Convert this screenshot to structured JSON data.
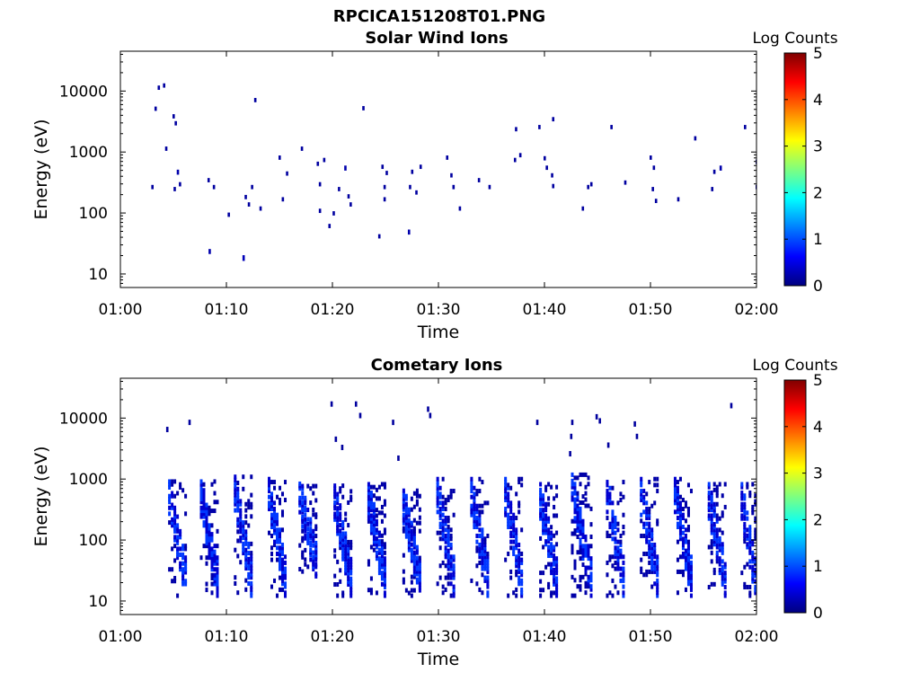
{
  "figure": {
    "filename": "RPCICA151208T01.PNG"
  },
  "colors": {
    "background": "#ffffff",
    "axes": "#000000",
    "point_low": "#00008f",
    "point_mid": "#0000ff",
    "colormap": [
      "#00007f",
      "#0000ff",
      "#007fff",
      "#00ffff",
      "#7fff7f",
      "#ffff00",
      "#ff7f00",
      "#ff0000",
      "#7f0000"
    ]
  },
  "chart_data": [
    {
      "type": "heatmap",
      "title": "Solar Wind Ions",
      "xlabel": "Time",
      "ylabel": "Energy (eV)",
      "yscale": "log",
      "ylim": [
        6,
        45000
      ],
      "xlim": [
        "01:00",
        "02:00"
      ],
      "xticks": [
        "01:00",
        "01:10",
        "01:20",
        "01:30",
        "01:40",
        "01:50",
        "02:00"
      ],
      "yticks": [
        10,
        100,
        1000,
        10000
      ],
      "ytick_labels": [
        "10",
        "100",
        "1000",
        "10000"
      ],
      "colorbar": {
        "label": "Log Counts",
        "range": [
          0,
          5
        ],
        "ticks": [
          "0",
          "1",
          "2",
          "3",
          "4",
          "5"
        ]
      },
      "points": [
        {
          "t": 3.0,
          "e": 270,
          "c": 0.1
        },
        {
          "t": 3.3,
          "e": 5200,
          "c": 0.1
        },
        {
          "t": 3.6,
          "e": 11500,
          "c": 0.1
        },
        {
          "t": 4.1,
          "e": 12500,
          "c": 0.1
        },
        {
          "t": 4.3,
          "e": 1150,
          "c": 0.1
        },
        {
          "t": 5.0,
          "e": 3900,
          "c": 0.1
        },
        {
          "t": 5.2,
          "e": 3000,
          "c": 0.1
        },
        {
          "t": 5.4,
          "e": 480,
          "c": 0.2
        },
        {
          "t": 5.6,
          "e": 300,
          "c": 0.1
        },
        {
          "t": 5.1,
          "e": 250,
          "c": 0.1
        },
        {
          "t": 8.3,
          "e": 350,
          "c": 0.1
        },
        {
          "t": 8.4,
          "e": 24,
          "c": 0.2
        },
        {
          "t": 8.8,
          "e": 270,
          "c": 0.1
        },
        {
          "t": 10.2,
          "e": 95,
          "c": 0.1
        },
        {
          "t": 11.6,
          "e": 19,
          "c": 0.3
        },
        {
          "t": 11.8,
          "e": 185,
          "c": 0.1
        },
        {
          "t": 12.1,
          "e": 140,
          "c": 0.1
        },
        {
          "t": 12.4,
          "e": 270,
          "c": 0.1
        },
        {
          "t": 12.7,
          "e": 7200,
          "c": 0.1
        },
        {
          "t": 13.2,
          "e": 120,
          "c": 0.1
        },
        {
          "t": 15.0,
          "e": 820,
          "c": 0.1
        },
        {
          "t": 15.3,
          "e": 170,
          "c": 0.1
        },
        {
          "t": 15.7,
          "e": 450,
          "c": 0.1
        },
        {
          "t": 17.1,
          "e": 1150,
          "c": 0.1
        },
        {
          "t": 18.6,
          "e": 650,
          "c": 0.1
        },
        {
          "t": 18.8,
          "e": 300,
          "c": 0.1
        },
        {
          "t": 18.8,
          "e": 110,
          "c": 0.1
        },
        {
          "t": 19.2,
          "e": 750,
          "c": 0.1
        },
        {
          "t": 19.7,
          "e": 62,
          "c": 0.1
        },
        {
          "t": 20.1,
          "e": 100,
          "c": 0.1
        },
        {
          "t": 20.6,
          "e": 250,
          "c": 0.1
        },
        {
          "t": 21.2,
          "e": 560,
          "c": 0.2
        },
        {
          "t": 21.5,
          "e": 190,
          "c": 0.1
        },
        {
          "t": 21.7,
          "e": 140,
          "c": 0.1
        },
        {
          "t": 22.9,
          "e": 5300,
          "c": 0.1
        },
        {
          "t": 24.4,
          "e": 42,
          "c": 0.1
        },
        {
          "t": 24.7,
          "e": 580,
          "c": 0.1
        },
        {
          "t": 24.9,
          "e": 270,
          "c": 0.1
        },
        {
          "t": 25.1,
          "e": 460,
          "c": 0.1
        },
        {
          "t": 24.9,
          "e": 170,
          "c": 0.1
        },
        {
          "t": 27.2,
          "e": 50,
          "c": 0.2
        },
        {
          "t": 27.5,
          "e": 480,
          "c": 0.1
        },
        {
          "t": 27.3,
          "e": 270,
          "c": 0.1
        },
        {
          "t": 27.9,
          "e": 220,
          "c": 0.1
        },
        {
          "t": 28.3,
          "e": 580,
          "c": 0.1
        },
        {
          "t": 30.8,
          "e": 820,
          "c": 0.1
        },
        {
          "t": 31.2,
          "e": 420,
          "c": 0.1
        },
        {
          "t": 31.4,
          "e": 270,
          "c": 0.1
        },
        {
          "t": 32.0,
          "e": 120,
          "c": 0.1
        },
        {
          "t": 33.8,
          "e": 350,
          "c": 0.1
        },
        {
          "t": 34.8,
          "e": 270,
          "c": 0.1
        },
        {
          "t": 37.2,
          "e": 750,
          "c": 0.1
        },
        {
          "t": 37.3,
          "e": 2400,
          "c": 0.1
        },
        {
          "t": 37.7,
          "e": 900,
          "c": 0.1
        },
        {
          "t": 39.5,
          "e": 2600,
          "c": 0.1
        },
        {
          "t": 40.0,
          "e": 800,
          "c": 0.1
        },
        {
          "t": 40.2,
          "e": 560,
          "c": 0.1
        },
        {
          "t": 40.7,
          "e": 420,
          "c": 0.1
        },
        {
          "t": 40.8,
          "e": 3500,
          "c": 0.1
        },
        {
          "t": 40.8,
          "e": 280,
          "c": 0.1
        },
        {
          "t": 43.6,
          "e": 120,
          "c": 0.1
        },
        {
          "t": 44.1,
          "e": 270,
          "c": 0.1
        },
        {
          "t": 44.4,
          "e": 300,
          "c": 0.1
        },
        {
          "t": 46.3,
          "e": 2600,
          "c": 0.1
        },
        {
          "t": 47.6,
          "e": 320,
          "c": 0.1
        },
        {
          "t": 50.0,
          "e": 820,
          "c": 0.1
        },
        {
          "t": 50.3,
          "e": 560,
          "c": 0.1
        },
        {
          "t": 50.2,
          "e": 250,
          "c": 0.1
        },
        {
          "t": 50.5,
          "e": 160,
          "c": 0.1
        },
        {
          "t": 52.6,
          "e": 170,
          "c": 0.1
        },
        {
          "t": 54.2,
          "e": 1700,
          "c": 0.1
        },
        {
          "t": 55.8,
          "e": 250,
          "c": 0.1
        },
        {
          "t": 56.0,
          "e": 480,
          "c": 0.1
        },
        {
          "t": 56.6,
          "e": 560,
          "c": 0.2
        },
        {
          "t": 58.9,
          "e": 2600,
          "c": 0.1
        },
        {
          "t": 60.0,
          "e": 700,
          "c": 0.1
        },
        {
          "t": 60.0,
          "e": 270,
          "c": 0.1
        }
      ]
    },
    {
      "type": "heatmap",
      "title": "Cometary Ions",
      "xlabel": "Time",
      "ylabel": "Energy (eV)",
      "yscale": "log",
      "ylim": [
        6,
        45000
      ],
      "xlim": [
        "01:00",
        "02:00"
      ],
      "xticks": [
        "01:00",
        "01:10",
        "01:20",
        "01:30",
        "01:40",
        "01:50",
        "02:00"
      ],
      "yticks": [
        10,
        100,
        1000,
        10000
      ],
      "ytick_labels": [
        "10",
        "100",
        "1000",
        "10000"
      ],
      "colorbar": {
        "label": "Log Counts",
        "range": [
          0,
          5
        ],
        "ticks": [
          "0",
          "1",
          "2",
          "3",
          "4",
          "5"
        ]
      },
      "scattered_points": [
        {
          "t": 4.4,
          "e": 6500,
          "c": 0.1
        },
        {
          "t": 6.5,
          "e": 8500,
          "c": 0.1
        },
        {
          "t": 19.9,
          "e": 17000,
          "c": 0.1
        },
        {
          "t": 20.3,
          "e": 4500,
          "c": 0.1
        },
        {
          "t": 20.9,
          "e": 3300,
          "c": 0.1
        },
        {
          "t": 22.2,
          "e": 17000,
          "c": 0.1
        },
        {
          "t": 22.6,
          "e": 11000,
          "c": 0.1
        },
        {
          "t": 25.7,
          "e": 8500,
          "c": 0.1
        },
        {
          "t": 26.2,
          "e": 2200,
          "c": 0.1
        },
        {
          "t": 29.0,
          "e": 14000,
          "c": 0.1
        },
        {
          "t": 29.2,
          "e": 11000,
          "c": 0.1
        },
        {
          "t": 39.3,
          "e": 8500,
          "c": 0.1
        },
        {
          "t": 42.6,
          "e": 8500,
          "c": 0.1
        },
        {
          "t": 42.5,
          "e": 5000,
          "c": 0.1
        },
        {
          "t": 42.4,
          "e": 2600,
          "c": 0.1
        },
        {
          "t": 44.9,
          "e": 10500,
          "c": 0.1
        },
        {
          "t": 45.2,
          "e": 9000,
          "c": 0.1
        },
        {
          "t": 46.0,
          "e": 3600,
          "c": 0.1
        },
        {
          "t": 48.5,
          "e": 8000,
          "c": 0.1
        },
        {
          "t": 48.7,
          "e": 5000,
          "c": 0.1
        },
        {
          "t": 57.6,
          "e": 16000,
          "c": 0.1
        }
      ],
      "stripes": [
        {
          "t_start": 4.5,
          "t_end": 6.3,
          "e_low": 12,
          "e_high": 1000,
          "density": 0.32
        },
        {
          "t_start": 7.5,
          "t_end": 9.3,
          "e_low": 12,
          "e_high": 1000,
          "density": 0.45
        },
        {
          "t_start": 10.7,
          "t_end": 12.6,
          "e_low": 12,
          "e_high": 1200,
          "density": 0.45
        },
        {
          "t_start": 13.9,
          "t_end": 15.6,
          "e_low": 12,
          "e_high": 1100,
          "density": 0.45
        },
        {
          "t_start": 16.8,
          "t_end": 18.6,
          "e_low": 25,
          "e_high": 900,
          "density": 0.4
        },
        {
          "t_start": 20.1,
          "t_end": 21.9,
          "e_low": 12,
          "e_high": 850,
          "density": 0.5
        },
        {
          "t_start": 23.3,
          "t_end": 25.2,
          "e_low": 12,
          "e_high": 900,
          "density": 0.55
        },
        {
          "t_start": 26.6,
          "t_end": 28.4,
          "e_low": 12,
          "e_high": 700,
          "density": 0.5
        },
        {
          "t_start": 29.8,
          "t_end": 31.6,
          "e_low": 12,
          "e_high": 1100,
          "density": 0.5
        },
        {
          "t_start": 33.0,
          "t_end": 34.8,
          "e_low": 12,
          "e_high": 1100,
          "density": 0.45
        },
        {
          "t_start": 36.2,
          "t_end": 38.0,
          "e_low": 12,
          "e_high": 1100,
          "density": 0.45
        },
        {
          "t_start": 39.5,
          "t_end": 41.3,
          "e_low": 12,
          "e_high": 900,
          "density": 0.45
        },
        {
          "t_start": 42.5,
          "t_end": 44.5,
          "e_low": 12,
          "e_high": 1300,
          "density": 0.45
        },
        {
          "t_start": 45.8,
          "t_end": 47.6,
          "e_low": 12,
          "e_high": 1100,
          "density": 0.4
        },
        {
          "t_start": 49.0,
          "t_end": 50.8,
          "e_low": 12,
          "e_high": 1100,
          "density": 0.4
        },
        {
          "t_start": 52.2,
          "t_end": 54.0,
          "e_low": 12,
          "e_high": 1100,
          "density": 0.4
        },
        {
          "t_start": 55.4,
          "t_end": 57.3,
          "e_low": 12,
          "e_high": 900,
          "density": 0.45
        },
        {
          "t_start": 58.5,
          "t_end": 60.0,
          "e_low": 12,
          "e_high": 900,
          "density": 0.4
        }
      ]
    }
  ]
}
